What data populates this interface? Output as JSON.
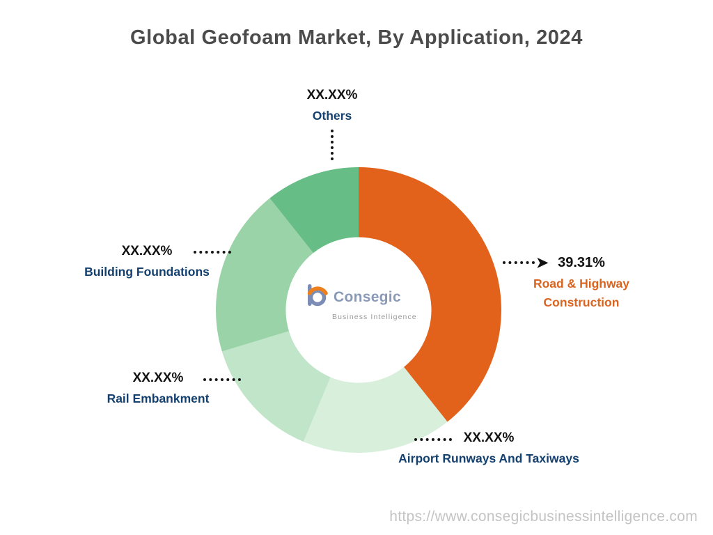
{
  "title": "Global Geofoam Market, By Application, 2024",
  "chart_data": {
    "type": "pie",
    "subtype": "donut",
    "title": "Global Geofoam Market, By Application, 2024",
    "start_angle_deg": 0,
    "direction": "clockwise",
    "inner_radius_ratio": 0.51,
    "segments": [
      {
        "label": "Road & Highway Construction",
        "display_pct": "39.31%",
        "value": 39.31,
        "color": "#e2611b"
      },
      {
        "label": "Airport Runways And Taxiways",
        "display_pct": "XX.XX%",
        "value": 17.0,
        "color": "#d8efdc"
      },
      {
        "label": "Rail Embankment",
        "display_pct": "XX.XX%",
        "value": 14.0,
        "color": "#c0e5c8"
      },
      {
        "label": "Building Foundations",
        "display_pct": "XX.XX%",
        "value": 19.0,
        "color": "#9bd3a9"
      },
      {
        "label": "Others",
        "display_pct": "XX.XX%",
        "value": 10.69,
        "color": "#66bd85"
      }
    ]
  },
  "callouts": {
    "others": {
      "pct": "XX.XX%",
      "name": "Others"
    },
    "building": {
      "pct": "XX.XX%",
      "name": "Building Foundations"
    },
    "rail": {
      "pct": "XX.XX%",
      "name": "Rail Embankment"
    },
    "airport": {
      "pct": "XX.XX%",
      "name": "Airport Runways And Taxiways"
    },
    "road": {
      "pct": "39.31%",
      "name_line1": "Road & Highway",
      "name_line2": "Construction"
    }
  },
  "logo": {
    "name": "Consegic",
    "tagline": "Business Intelligence"
  },
  "footer": {
    "url": "https://www.consegicbusinessintelligence.com"
  },
  "colors": {
    "accent_orange": "#e2611b",
    "label_navy": "#13406e",
    "title_gray": "#4b4b4b",
    "url_gray": "#c4c4c4"
  }
}
